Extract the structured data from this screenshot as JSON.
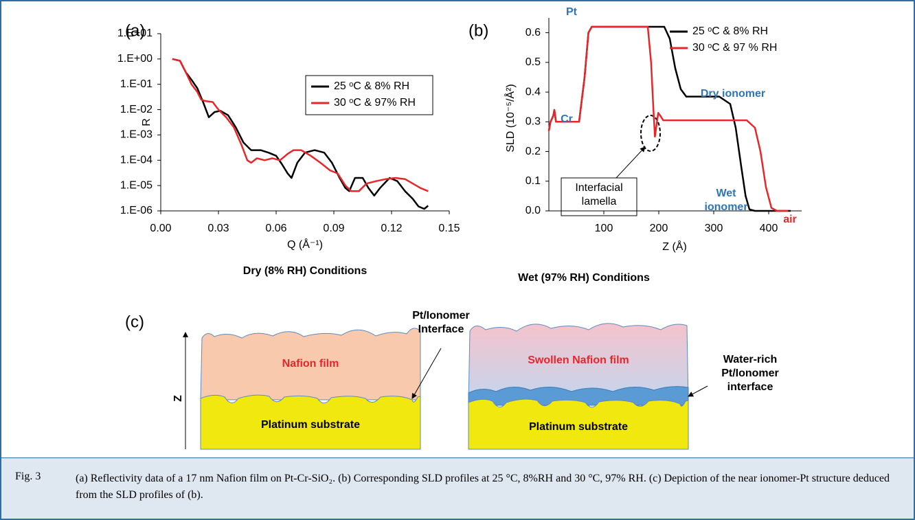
{
  "chart_data": [
    {
      "type": "line",
      "panel": "(a)",
      "title": "Dry (8% RH) Conditions",
      "x_label": "Q (Å⁻¹)",
      "y_label": "R",
      "yscale": "log",
      "xlim": [
        0,
        0.15
      ],
      "xticks": [
        {
          "value": 0,
          "label": "0.00"
        },
        {
          "value": 0.03,
          "label": "0.03"
        },
        {
          "value": 0.06,
          "label": "0.06"
        },
        {
          "value": 0.09,
          "label": "0.09"
        },
        {
          "value": 0.12,
          "label": "0.12"
        },
        {
          "value": 0.15,
          "label": "0.15"
        }
      ],
      "ylim": [
        1e-06,
        10
      ],
      "yticks": [
        {
          "value": 10,
          "label": "1.E+01"
        },
        {
          "value": 1,
          "label": "1.E+00"
        },
        {
          "value": 0.1,
          "label": "1.E-01"
        },
        {
          "value": 0.01,
          "label": "1.E-02"
        },
        {
          "value": 0.001,
          "label": "1.E-03"
        },
        {
          "value": 0.0001,
          "label": "1.E-04"
        },
        {
          "value": 1e-05,
          "label": "1.E-05"
        },
        {
          "value": 1e-06,
          "label": "1.E-06"
        }
      ],
      "legend": "upper right",
      "series": [
        {
          "name": "25 ᵒC & 8% RH",
          "color": "#000000",
          "x": [
            0.006,
            0.01,
            0.013,
            0.016,
            0.019,
            0.022,
            0.025,
            0.028,
            0.031,
            0.035,
            0.039,
            0.043,
            0.047,
            0.052,
            0.056,
            0.06,
            0.063,
            0.066,
            0.068,
            0.071,
            0.075,
            0.08,
            0.085,
            0.089,
            0.093,
            0.096,
            0.098,
            0.101,
            0.105,
            0.108,
            0.111,
            0.114,
            0.119,
            0.123,
            0.127,
            0.131,
            0.134,
            0.137,
            0.139
          ],
          "values": [
            1.0,
            0.85,
            0.3,
            0.15,
            0.07,
            0.02,
            0.005,
            0.008,
            0.009,
            0.006,
            0.002,
            0.0005,
            0.00025,
            0.00025,
            0.0002,
            0.00015,
            7e-05,
            3e-05,
            2e-05,
            8e-05,
            0.0002,
            0.00025,
            0.0002,
            8e-05,
            2e-05,
            8e-06,
            6e-06,
            2e-05,
            2e-05,
            8e-06,
            4e-06,
            8e-06,
            2e-05,
            1.5e-05,
            6e-06,
            3e-06,
            1.5e-06,
            1.2e-06,
            1.6e-06
          ]
        },
        {
          "name": "30 ᵒC & 97% RH",
          "color": "#e8262a",
          "x": [
            0.006,
            0.01,
            0.013,
            0.016,
            0.019,
            0.021,
            0.023,
            0.027,
            0.03,
            0.034,
            0.038,
            0.042,
            0.045,
            0.047,
            0.05,
            0.054,
            0.058,
            0.062,
            0.066,
            0.069,
            0.073,
            0.078,
            0.083,
            0.088,
            0.092,
            0.096,
            0.099,
            0.103,
            0.107,
            0.112,
            0.117,
            0.122,
            0.127,
            0.131,
            0.135,
            0.139
          ],
          "values": [
            1.0,
            0.85,
            0.3,
            0.1,
            0.05,
            0.025,
            0.022,
            0.02,
            0.01,
            0.005,
            0.002,
            0.0004,
            0.0001,
            8e-05,
            0.00012,
            0.0001,
            0.00012,
            0.0001,
            0.00018,
            0.00025,
            0.00025,
            0.00015,
            8e-05,
            4e-05,
            3e-05,
            1e-05,
            6e-06,
            6e-06,
            1.2e-05,
            1.5e-05,
            1.8e-05,
            2e-05,
            1.8e-05,
            1.2e-05,
            8e-06,
            6e-06
          ]
        }
      ]
    },
    {
      "type": "line",
      "panel": "(b)",
      "title": "Wet (97% RH) Conditions",
      "x_label": "Z (Å)",
      "y_label": "SLD (10⁻⁵/Å²)",
      "xlim": [
        0,
        460
      ],
      "xticks": [
        100,
        200,
        300,
        400
      ],
      "ylim": [
        0,
        0.65
      ],
      "yticks": [
        {
          "value": 0,
          "label": "0.0"
        },
        {
          "value": 0.1,
          "label": "0.1"
        },
        {
          "value": 0.2,
          "label": "0.2"
        },
        {
          "value": 0.3,
          "label": "0.3"
        },
        {
          "value": 0.4,
          "label": "0.4"
        },
        {
          "value": 0.5,
          "label": "0.5"
        },
        {
          "value": 0.6,
          "label": "0.6"
        }
      ],
      "legend": "upper right",
      "annotations": [
        {
          "text": "Pt",
          "color": "#2e75b6"
        },
        {
          "text": "Cr",
          "color": "#2e75b6"
        },
        {
          "text": "Dry ionomer",
          "color": "#2e75b6"
        },
        {
          "text": "Wet ionomer",
          "color": "#2e75b6"
        },
        {
          "text": "air",
          "color": "#e8262a"
        },
        {
          "text": "Interfacial lamella",
          "color": "#000000"
        }
      ],
      "series": [
        {
          "name": "25 ᵒC & 8% RH",
          "color": "#000000",
          "x": [
            0,
            3,
            8,
            10,
            13,
            55,
            65,
            72,
            78,
            210,
            220,
            230,
            240,
            250,
            310,
            330,
            340,
            350,
            358,
            365,
            375,
            440
          ],
          "values": [
            0.27,
            0.3,
            0.32,
            0.34,
            0.3,
            0.3,
            0.45,
            0.6,
            0.62,
            0.62,
            0.58,
            0.48,
            0.41,
            0.385,
            0.385,
            0.36,
            0.28,
            0.15,
            0.05,
            0.005,
            0,
            0
          ]
        },
        {
          "name": "30 ᵒC & 97 % RH",
          "color": "#e8262a",
          "x": [
            0,
            3,
            8,
            10,
            13,
            55,
            65,
            72,
            78,
            180,
            186,
            190,
            193,
            196,
            199,
            203,
            208,
            215,
            360,
            375,
            385,
            395,
            405,
            415,
            435
          ],
          "values": [
            0.27,
            0.3,
            0.32,
            0.34,
            0.3,
            0.3,
            0.45,
            0.6,
            0.62,
            0.62,
            0.5,
            0.35,
            0.25,
            0.29,
            0.33,
            0.32,
            0.305,
            0.305,
            0.305,
            0.28,
            0.2,
            0.08,
            0.01,
            0,
            0
          ]
        }
      ]
    }
  ],
  "diagram": {
    "panel": "(c)",
    "axis": "Z",
    "interface_left": "Pt/Ionomer Interface",
    "film_left": "Nafion film",
    "substrate_left": "Platinum substrate",
    "film_right": "Swollen Nafion film",
    "interface_right": "Water-rich Pt/Ionomer interface",
    "substrate_right": "Platinum substrate"
  },
  "caption": {
    "label": "Fig. 3",
    "text": "(a) Reflectivity data of a 17 nm Nafion film on Pt-Cr-SiO₂. (b) Corresponding SLD profiles at 25 °C, 8%RH and 30 °C, 97% RH. (c) Depiction of the near ionomer-Pt structure deduced from the SLD profiles of (b)."
  }
}
